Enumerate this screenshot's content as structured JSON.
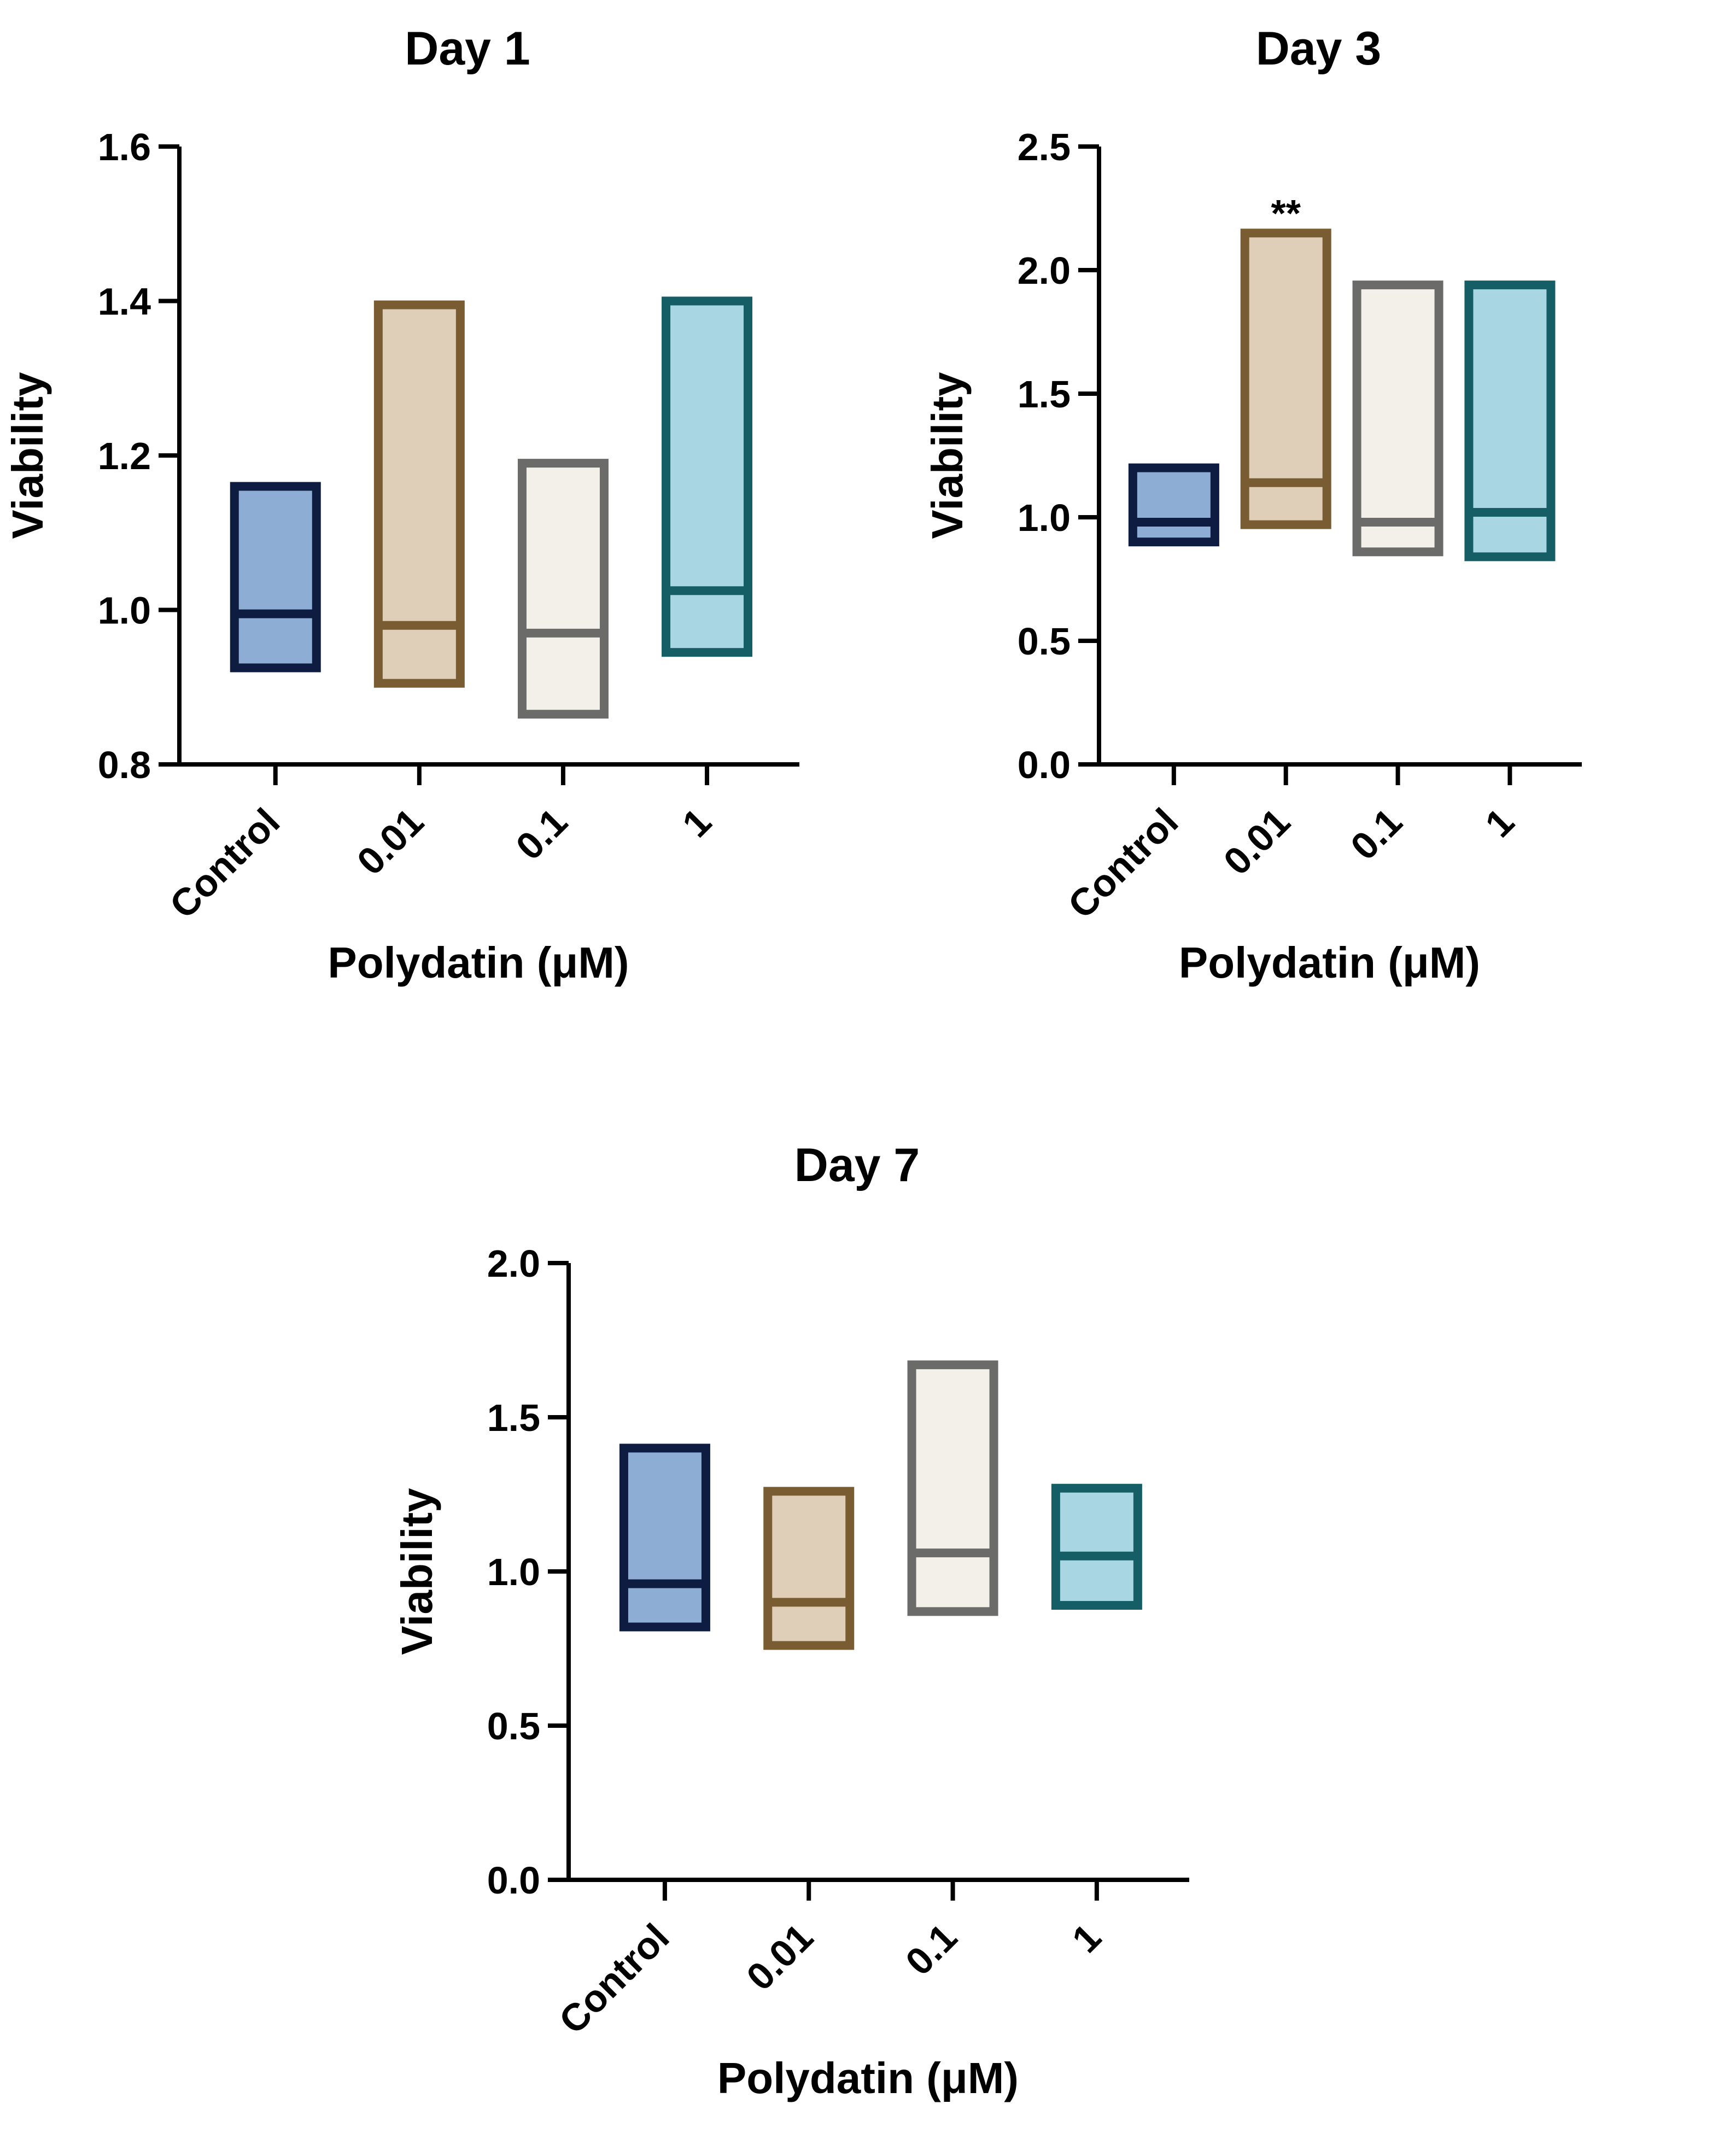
{
  "chart_data": [
    {
      "type": "box",
      "title": "Day 1",
      "xlabel": "Polydatin (μM)",
      "ylabel": "Viability",
      "ylim": [
        0.8,
        1.6
      ],
      "yticks": [
        "0.8",
        "1.0",
        "1.2",
        "1.4",
        "1.6"
      ],
      "categories": [
        "Control",
        "0.01",
        "0.1",
        "1"
      ],
      "boxes": [
        {
          "min": 0.925,
          "median": 0.995,
          "max": 1.16,
          "annotation": ""
        },
        {
          "min": 0.905,
          "median": 0.98,
          "max": 1.395,
          "annotation": ""
        },
        {
          "min": 0.865,
          "median": 0.97,
          "max": 1.19,
          "annotation": ""
        },
        {
          "min": 0.945,
          "median": 1.025,
          "max": 1.4,
          "annotation": ""
        }
      ]
    },
    {
      "type": "box",
      "title": "Day 3",
      "xlabel": "Polydatin (μM)",
      "ylabel": "Viability",
      "ylim": [
        0.0,
        2.5
      ],
      "yticks": [
        "0.0",
        "0.5",
        "1.0",
        "1.5",
        "2.0",
        "2.5"
      ],
      "categories": [
        "Control",
        "0.01",
        "0.1",
        "1"
      ],
      "boxes": [
        {
          "min": 0.9,
          "median": 0.98,
          "max": 1.2,
          "annotation": ""
        },
        {
          "min": 0.97,
          "median": 1.14,
          "max": 2.15,
          "annotation": "**"
        },
        {
          "min": 0.86,
          "median": 0.98,
          "max": 1.94,
          "annotation": ""
        },
        {
          "min": 0.84,
          "median": 1.02,
          "max": 1.94,
          "annotation": ""
        }
      ]
    },
    {
      "type": "box",
      "title": "Day 7",
      "xlabel": "Polydatin (μM)",
      "ylabel": "Viability",
      "ylim": [
        0.0,
        2.0
      ],
      "yticks": [
        "0.0",
        "0.5",
        "1.0",
        "1.5",
        "2.0"
      ],
      "categories": [
        "Control",
        "0.01",
        "0.1",
        "1"
      ],
      "boxes": [
        {
          "min": 0.82,
          "median": 0.96,
          "max": 1.4,
          "annotation": ""
        },
        {
          "min": 0.76,
          "median": 0.9,
          "max": 1.26,
          "annotation": ""
        },
        {
          "min": 0.87,
          "median": 1.06,
          "max": 1.67,
          "annotation": ""
        },
        {
          "min": 0.89,
          "median": 1.05,
          "max": 1.27,
          "annotation": ""
        }
      ]
    }
  ],
  "colors": {
    "axis": "#000000",
    "series": [
      {
        "fill": "#8dadd4",
        "stroke": "#0d1c40"
      },
      {
        "fill": "#e0cfb8",
        "stroke": "#7a5c32"
      },
      {
        "fill": "#f3f0ea",
        "stroke": "#6b6b69"
      },
      {
        "fill": "#a8d7e3",
        "stroke": "#155e66"
      }
    ]
  }
}
